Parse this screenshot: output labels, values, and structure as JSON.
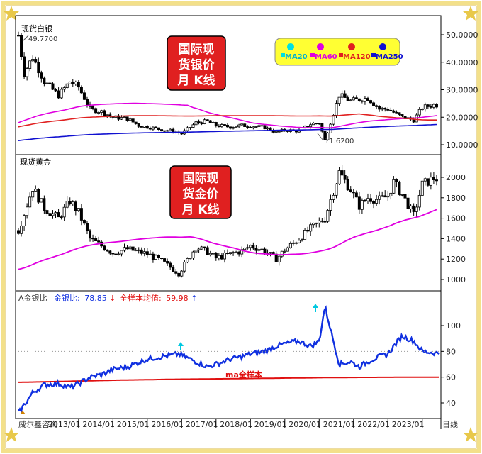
{
  "colors": {
    "frame": "#E8C84A",
    "silver_bg": "#E02020",
    "ma20": "#00E0E0",
    "ma60": "#E000E0",
    "ma120": "#E02020",
    "ma250": "#1010D0",
    "ratio": "#1030E0",
    "sample_line": "#E01010"
  },
  "silver_panel": {
    "title": "现货白银",
    "badge_lines": [
      "国际现",
      "货银价",
      "月  K线"
    ],
    "high_label": "49.7700",
    "low_label": "11.6200",
    "y_ticks": [
      "50.0000",
      "40.0000",
      "30.0000",
      "20.0000",
      "10.0000"
    ],
    "legend": [
      {
        "dot": "ma20",
        "label": "MA20"
      },
      {
        "dot": "ma60",
        "label": "MA60"
      },
      {
        "dot": "ma120",
        "label": "MA120"
      },
      {
        "dot": "ma250",
        "label": "MA250"
      }
    ]
  },
  "gold_panel": {
    "title": "现货黄金",
    "badge_lines": [
      "国际现",
      "货金价",
      "月  K线"
    ],
    "y_ticks": [
      "2000",
      "1800",
      "1600",
      "1400",
      "1200",
      "1000"
    ]
  },
  "ratio_panel": {
    "label_prefix": "A金银比",
    "label_ratio_name": "金银比:",
    "label_ratio_value": "78.85",
    "label_arrow_down": "↓",
    "label_sample_name": "全样本均值:",
    "label_sample_value": "59.98",
    "label_arrow_up": "↑",
    "sample_text": "ma全样本",
    "y_ticks": [
      "100",
      "80",
      "60",
      "40"
    ]
  },
  "x_axis": {
    "left_text": "威尔鑫咨询",
    "labels": [
      "2013/01",
      "2014/01",
      "2015/01",
      "2016/01",
      "2017/01",
      "2018/01",
      "2019/01",
      "2020/01",
      "2021/01",
      "2022/01",
      "2023/01"
    ],
    "right_text": "日线"
  },
  "chart_data": [
    {
      "type": "line",
      "title": "现货白银",
      "ylim": [
        8,
        52
      ],
      "x": [
        "2011/04",
        "2011/06",
        "2011/09",
        "2012/01",
        "2012/06",
        "2012/10",
        "2013/01",
        "2013/05",
        "2013/09",
        "2014/01",
        "2014/06",
        "2014/10",
        "2015/01",
        "2015/06",
        "2015/10",
        "2016/01",
        "2016/06",
        "2016/10",
        "2017/01",
        "2017/06",
        "2017/10",
        "2018/01",
        "2018/06",
        "2018/10",
        "2019/01",
        "2019/06",
        "2019/10",
        "2020/01",
        "2020/03",
        "2020/08",
        "2020/12",
        "2021/06",
        "2021/10",
        "2022/01",
        "2022/06",
        "2022/10",
        "2023/01",
        "2023/05"
      ],
      "series": [
        {
          "name": "",
          "values": [
            49.77,
            36,
            42,
            33,
            28,
            33,
            31,
            23,
            22,
            20,
            19.5,
            17,
            16.5,
            15.5,
            15,
            14,
            18,
            18.5,
            17,
            16.5,
            17,
            16.8,
            16.3,
            14.5,
            15.3,
            15,
            17.5,
            18,
            11.62,
            28,
            26,
            27,
            23,
            23,
            20,
            19,
            23.5,
            24.5
          ]
        }
      ]
    },
    {
      "type": "line",
      "title": "现货黄金",
      "ylim": [
        900,
        2100
      ],
      "x": [
        "2011/04",
        "2011/09",
        "2012/01",
        "2012/06",
        "2012/10",
        "2013/01",
        "2013/05",
        "2013/09",
        "2014/01",
        "2014/06",
        "2015/01",
        "2015/06",
        "2015/12",
        "2016/06",
        "2016/10",
        "2017/01",
        "2017/06",
        "2017/10",
        "2018/01",
        "2018/06",
        "2018/10",
        "2019/01",
        "2019/06",
        "2019/10",
        "2020/01",
        "2020/03",
        "2020/08",
        "2020/12",
        "2021/03",
        "2021/06",
        "2021/10",
        "2022/01",
        "2022/03",
        "2022/06",
        "2022/10",
        "2023/01",
        "2023/05"
      ],
      "series": [
        {
          "name": "",
          "values": [
            1480,
            1900,
            1700,
            1600,
            1770,
            1660,
            1400,
            1330,
            1260,
            1300,
            1250,
            1180,
            1060,
            1320,
            1270,
            1210,
            1250,
            1280,
            1330,
            1280,
            1200,
            1290,
            1400,
            1500,
            1560,
            1600,
            2050,
            1880,
            1720,
            1800,
            1780,
            1820,
            1950,
            1830,
            1630,
            1930,
            1990
          ]
        }
      ]
    },
    {
      "type": "line",
      "title": "",
      "ylim": [
        30,
        120
      ],
      "x": [
        "2011/04",
        "2011/09",
        "2012/01",
        "2012/06",
        "2012/10",
        "2013/01",
        "2013/05",
        "2013/09",
        "2014/01",
        "2014/06",
        "2015/01",
        "2015/06",
        "2015/12",
        "2016/06",
        "2016/10",
        "2017/01",
        "2017/06",
        "2017/10",
        "2018/01",
        "2018/06",
        "2018/10",
        "2019/01",
        "2019/06",
        "2019/10",
        "2020/01",
        "2020/03",
        "2020/08",
        "2020/12",
        "2021/03",
        "2021/06",
        "2021/10",
        "2022/01",
        "2022/03",
        "2022/06",
        "2022/10",
        "2023/01",
        "2023/05"
      ],
      "series": [
        {
          "name": "金银比",
          "values": [
            32,
            48,
            54,
            55,
            52,
            55,
            60,
            62,
            66,
            68,
            74,
            76,
            78,
            72,
            68,
            70,
            74,
            76,
            78,
            80,
            84,
            86,
            88,
            84,
            88,
            115,
            70,
            72,
            68,
            72,
            76,
            78,
            84,
            92,
            88,
            80,
            78.85
          ]
        },
        {
          "name": "全样本均值",
          "values": [
            56,
            56.2,
            56.4,
            56.6,
            56.8,
            57,
            57.2,
            57.4,
            57.6,
            57.8,
            58,
            58.2,
            58.4,
            58.5,
            58.6,
            58.7,
            58.8,
            58.9,
            59,
            59.1,
            59.2,
            59.3,
            59.4,
            59.5,
            59.6,
            59.65,
            59.7,
            59.75,
            59.8,
            59.82,
            59.85,
            59.88,
            59.9,
            59.92,
            59.94,
            59.96,
            59.98
          ]
        }
      ]
    }
  ]
}
